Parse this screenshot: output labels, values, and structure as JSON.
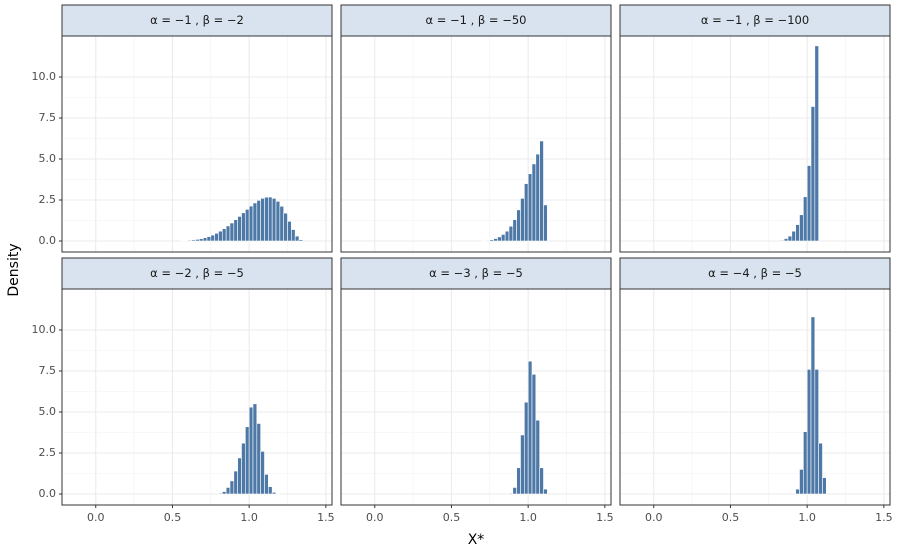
{
  "chart_data": {
    "type": "histogram",
    "color": "#4e79a7",
    "xlabel": "X*",
    "ylabel": "Density",
    "xlim": [
      -0.22,
      1.54
    ],
    "ylim": [
      -0.67,
      12.5
    ],
    "xticks": [
      {
        "value": 0,
        "label": "0.0"
      },
      {
        "value": 0.5,
        "label": "0.5"
      },
      {
        "value": 1,
        "label": "1.0"
      },
      {
        "value": 1.5,
        "label": "1.5"
      }
    ],
    "yticks": [
      {
        "value": 0,
        "label": "0.0"
      },
      2.5,
      {
        "value": 5,
        "label": "5.0"
      },
      7.5,
      {
        "value": 10,
        "label": "10.0"
      }
    ],
    "grid": true,
    "facets": [
      {
        "title": "α = −1 , β = −2",
        "bins": [
          0.55,
          0.575,
          0.6,
          0.625,
          0.65,
          0.675,
          0.7,
          0.725,
          0.75,
          0.775,
          0.8,
          0.825,
          0.85,
          0.875,
          0.9,
          0.925,
          0.95,
          0.975,
          1.0,
          1.025,
          1.05,
          1.075,
          1.1,
          1.125,
          1.15,
          1.175,
          1.2,
          1.225,
          1.25,
          1.275,
          1.3,
          1.325,
          1.35
        ],
        "values": [
          0.02,
          0.03,
          0.05,
          0.07,
          0.1,
          0.14,
          0.2,
          0.27,
          0.36,
          0.47,
          0.6,
          0.75,
          0.92,
          1.1,
          1.3,
          1.5,
          1.72,
          1.93,
          2.13,
          2.32,
          2.48,
          2.6,
          2.67,
          2.68,
          2.6,
          2.42,
          2.12,
          1.7,
          1.2,
          0.7,
          0.3,
          0.08
        ]
      },
      {
        "title": "α = −1 , β = −50",
        "bins": [
          0.7,
          0.725,
          0.75,
          0.775,
          0.8,
          0.825,
          0.85,
          0.875,
          0.9,
          0.925,
          0.95,
          0.975,
          1.0,
          1.025,
          1.05,
          1.075,
          1.1,
          1.125
        ],
        "values": [
          0.02,
          0.04,
          0.08,
          0.15,
          0.25,
          0.4,
          0.6,
          0.9,
          1.3,
          1.9,
          2.6,
          3.5,
          4.1,
          4.7,
          5.3,
          6.1,
          2.2
        ]
      },
      {
        "title": "α = −1 , β = −100",
        "bins": [
          0.825,
          0.85,
          0.875,
          0.9,
          0.925,
          0.95,
          0.975,
          1.0,
          1.025,
          1.05,
          1.075
        ],
        "values": [
          0.05,
          0.15,
          0.3,
          0.6,
          1.0,
          1.6,
          2.7,
          4.6,
          8.2,
          11.9
        ]
      },
      {
        "title": "α = −2 , β = −5",
        "bins": [
          0.8,
          0.825,
          0.85,
          0.875,
          0.9,
          0.925,
          0.95,
          0.975,
          1.0,
          1.025,
          1.05,
          1.075,
          1.1,
          1.125,
          1.15,
          1.175,
          1.2
        ],
        "values": [
          0.05,
          0.15,
          0.4,
          0.8,
          1.4,
          2.2,
          3.1,
          4.1,
          5.3,
          5.5,
          4.3,
          2.6,
          1.2,
          0.45,
          0.1,
          0.02
        ]
      },
      {
        "title": "α = −3 , β = −5",
        "bins": [
          0.875,
          0.9,
          0.925,
          0.95,
          0.975,
          1.0,
          1.025,
          1.05,
          1.075,
          1.1,
          1.125
        ],
        "values": [
          0.05,
          0.4,
          1.6,
          3.6,
          5.6,
          8.1,
          7.3,
          4.5,
          1.6,
          0.3
        ]
      },
      {
        "title": "α = −4 , β = −5",
        "bins": [
          0.925,
          0.95,
          0.975,
          1.0,
          1.025,
          1.05,
          1.075,
          1.1,
          1.125
        ],
        "values": [
          0.3,
          1.5,
          3.8,
          7.6,
          10.8,
          7.6,
          3.1,
          1.0
        ]
      }
    ]
  }
}
